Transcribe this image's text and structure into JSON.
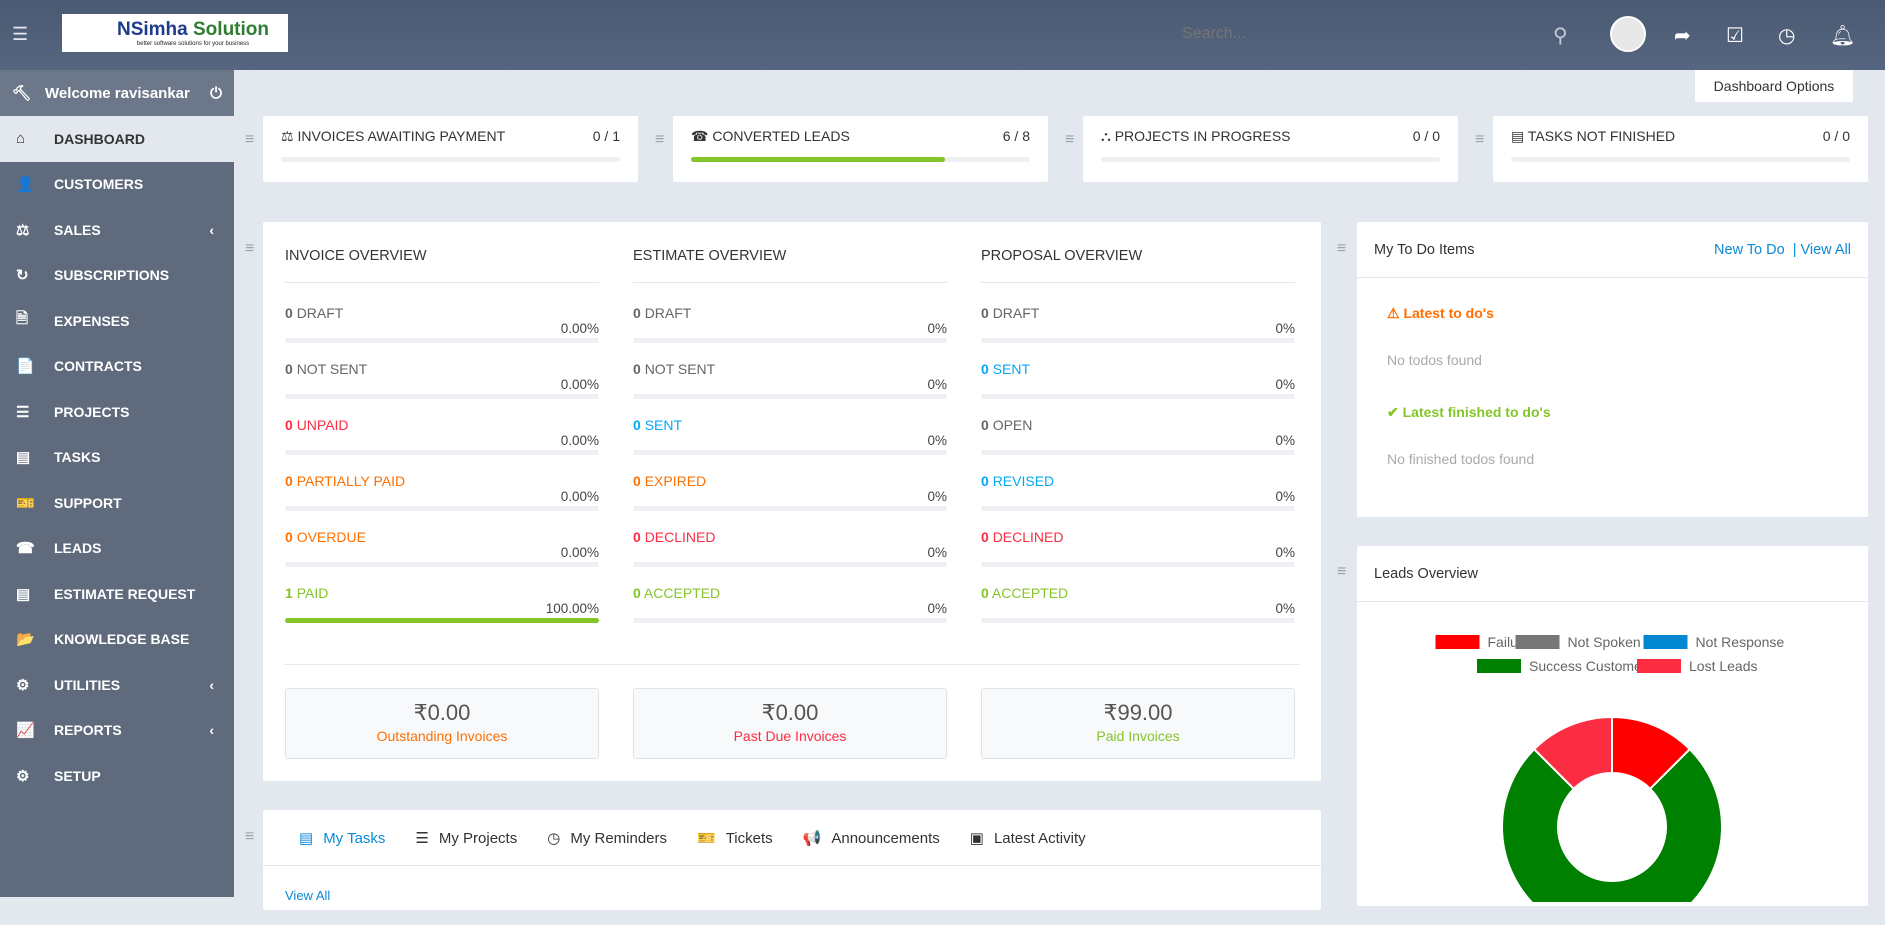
{
  "header": {
    "logo_name_1": "NSimha",
    "logo_name_2": " Solution",
    "logo_tagline": "better software solutions for your business",
    "search_placeholder": "Search..."
  },
  "sidebar": {
    "welcome": "Welcome ravisankar",
    "items": [
      {
        "label": "Dashboard",
        "icon": "⌂",
        "name": "dashboard",
        "active": true
      },
      {
        "label": "Customers",
        "icon": "👤",
        "name": "customers"
      },
      {
        "label": "Sales",
        "icon": "⚖",
        "name": "sales",
        "chev": true
      },
      {
        "label": "Subscriptions",
        "icon": "↻",
        "name": "subscriptions"
      },
      {
        "label": "Expenses",
        "icon": "🗎",
        "name": "expenses"
      },
      {
        "label": "Contracts",
        "icon": "📄",
        "name": "contracts"
      },
      {
        "label": "Projects",
        "icon": "☰",
        "name": "projects"
      },
      {
        "label": "Tasks",
        "icon": "▤",
        "name": "tasks"
      },
      {
        "label": "Support",
        "icon": "🎫",
        "name": "support"
      },
      {
        "label": "Leads",
        "icon": "☎",
        "name": "leads"
      },
      {
        "label": "Estimate Request",
        "icon": "▤",
        "name": "estimate-request"
      },
      {
        "label": "Knowledge Base",
        "icon": "📂",
        "name": "knowledge-base"
      },
      {
        "label": "Utilities",
        "icon": "⚙",
        "name": "utilities",
        "chev": true
      },
      {
        "label": "Reports",
        "icon": "📈",
        "name": "reports",
        "chev": true
      },
      {
        "label": "Setup",
        "icon": "⚙",
        "name": "setup"
      }
    ]
  },
  "dashboard_options": "Dashboard Options",
  "stats": [
    {
      "icon": "⚖",
      "label": "Invoices Awaiting Payment",
      "value": "0 / 1",
      "progress": 0
    },
    {
      "icon": "☎",
      "label": "Converted Leads",
      "value": "6 / 8",
      "progress": 75
    },
    {
      "icon": "⛬",
      "label": "Projects In Progress",
      "value": "0 / 0",
      "progress": 0
    },
    {
      "icon": "▤",
      "label": "Tasks Not Finished",
      "value": "0 / 0",
      "progress": 0
    }
  ],
  "overview": [
    {
      "title": "INVOICE OVERVIEW",
      "rows": [
        {
          "count": "0",
          "label": "DRAFT",
          "pct": "0.00%",
          "color": "#666",
          "progress": 0
        },
        {
          "count": "0",
          "label": "NOT SENT",
          "pct": "0.00%",
          "color": "#666",
          "progress": 0
        },
        {
          "count": "0",
          "label": "UNPAID",
          "pct": "0.00%",
          "color": "#fc2d42",
          "progress": 0
        },
        {
          "count": "0",
          "label": "PARTIALLY PAID",
          "pct": "0.00%",
          "color": "#ff6f00",
          "progress": 0
        },
        {
          "count": "0",
          "label": "OVERDUE",
          "pct": "0.00%",
          "color": "#ff6f00",
          "progress": 0
        },
        {
          "count": "1",
          "label": "PAID",
          "pct": "100.00%",
          "color": "#84c529",
          "progress": 100
        }
      ],
      "total": {
        "value": "₹0.00",
        "label": "Outstanding Invoices",
        "color": "#ff6f00"
      }
    },
    {
      "title": "ESTIMATE OVERVIEW",
      "rows": [
        {
          "count": "0",
          "label": "DRAFT",
          "pct": "0%",
          "color": "#666",
          "progress": 0
        },
        {
          "count": "0",
          "label": "NOT SENT",
          "pct": "0%",
          "color": "#666",
          "progress": 0
        },
        {
          "count": "0",
          "label": "SENT",
          "pct": "0%",
          "color": "#03a9f4",
          "progress": 0
        },
        {
          "count": "0",
          "label": "EXPIRED",
          "pct": "0%",
          "color": "#ff6f00",
          "progress": 0
        },
        {
          "count": "0",
          "label": "DECLINED",
          "pct": "0%",
          "color": "#fc2d42",
          "progress": 0
        },
        {
          "count": "0",
          "label": "ACCEPTED",
          "pct": "0%",
          "color": "#84c529",
          "progress": 0
        }
      ],
      "total": {
        "value": "₹0.00",
        "label": "Past Due Invoices",
        "color": "#fc2d42"
      }
    },
    {
      "title": "PROPOSAL OVERVIEW",
      "rows": [
        {
          "count": "0",
          "label": "DRAFT",
          "pct": "0%",
          "color": "#666",
          "progress": 0
        },
        {
          "count": "0",
          "label": "SENT",
          "pct": "0%",
          "color": "#03a9f4",
          "progress": 0
        },
        {
          "count": "0",
          "label": "OPEN",
          "pct": "0%",
          "color": "#666",
          "progress": 0
        },
        {
          "count": "0",
          "label": "REVISED",
          "pct": "0%",
          "color": "#03a9f4",
          "progress": 0
        },
        {
          "count": "0",
          "label": "DECLINED",
          "pct": "0%",
          "color": "#fc2d42",
          "progress": 0
        },
        {
          "count": "0",
          "label": "ACCEPTED",
          "pct": "0%",
          "color": "#84c529",
          "progress": 0
        }
      ],
      "total": {
        "value": "₹99.00",
        "label": "Paid Invoices",
        "color": "#84c529"
      }
    }
  ],
  "todo": {
    "title": "My To Do Items",
    "new": "New To Do",
    "view_all": "| View All",
    "latest": "Latest to do's",
    "none": "No todos found",
    "finished": "Latest finished to do's",
    "none_finished": "No finished todos found"
  },
  "leads": {
    "title": "Leads Overview"
  },
  "chart_data": {
    "type": "pie",
    "subtype": "doughnut",
    "title": "Leads Overview",
    "legend_position": "top",
    "labels": [
      "Failure",
      "Not Spoken",
      "Not Response",
      "Success Customer",
      "Lost Leads"
    ],
    "values": [
      1,
      0,
      0,
      6,
      1
    ],
    "colors": [
      "#ff0000",
      "#777777",
      "#0288d1",
      "#008000",
      "#fc2d42"
    ]
  },
  "tabs": [
    {
      "label": "My Tasks",
      "icon": "▤"
    },
    {
      "label": "My Projects",
      "icon": "☰"
    },
    {
      "label": "My Reminders",
      "icon": "◷"
    },
    {
      "label": "Tickets",
      "icon": "🎫"
    },
    {
      "label": "Announcements",
      "icon": "📢"
    },
    {
      "label": "Latest Activity",
      "icon": "▣"
    }
  ],
  "view_all": "View All"
}
